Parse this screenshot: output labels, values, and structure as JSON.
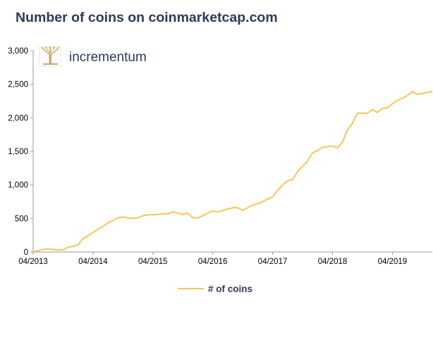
{
  "title": "Number of coins on coinmarketcap.com",
  "logo": {
    "text": "incrementum",
    "icon": "tree-icon",
    "color": "#c9a96a"
  },
  "chart_data": {
    "type": "line",
    "title": "Number of coins on coinmarketcap.com",
    "xlabel": "",
    "ylabel": "",
    "ylim": [
      0,
      3000
    ],
    "yticks": [
      "0",
      "500",
      "1,000",
      "1,500",
      "2,000",
      "2,500",
      "3,000"
    ],
    "ytick_values": [
      0,
      500,
      1000,
      1500,
      2000,
      2500,
      3000
    ],
    "xticks": [
      "04/2013",
      "04/2014",
      "04/2015",
      "04/2016",
      "04/2017",
      "04/2018",
      "04/2019"
    ],
    "grid": false,
    "legend": "bottom-center",
    "series": [
      {
        "name": "# of coins",
        "color": "#f7c55b",
        "x": [
          "2013-04",
          "2013-05",
          "2013-06",
          "2013-07",
          "2013-08",
          "2013-09",
          "2013-10",
          "2013-11",
          "2013-12",
          "2014-01",
          "2014-02",
          "2014-03",
          "2014-04",
          "2014-05",
          "2014-06",
          "2014-07",
          "2014-08",
          "2014-09",
          "2014-10",
          "2014-11",
          "2014-12",
          "2015-01",
          "2015-02",
          "2015-03",
          "2015-04",
          "2015-05",
          "2015-06",
          "2015-07",
          "2015-08",
          "2015-09",
          "2015-10",
          "2015-11",
          "2015-12",
          "2016-01",
          "2016-02",
          "2016-03",
          "2016-04",
          "2016-05",
          "2016-06",
          "2016-07",
          "2016-08",
          "2016-09",
          "2016-10",
          "2016-11",
          "2016-12",
          "2017-01",
          "2017-02",
          "2017-03",
          "2017-04",
          "2017-05",
          "2017-06",
          "2017-07",
          "2017-08",
          "2017-09",
          "2017-10",
          "2017-11",
          "2017-12",
          "2018-01",
          "2018-02",
          "2018-03",
          "2018-04",
          "2018-05",
          "2018-06",
          "2018-07",
          "2018-08",
          "2018-09",
          "2018-10",
          "2018-11",
          "2018-12",
          "2019-01",
          "2019-02",
          "2019-03",
          "2019-04",
          "2019-05",
          "2019-06",
          "2019-07",
          "2019-08",
          "2019-09",
          "2019-10",
          "2019-11",
          "2019-12"
        ],
        "values": [
          5,
          20,
          40,
          45,
          40,
          30,
          35,
          70,
          85,
          110,
          200,
          240,
          290,
          340,
          380,
          440,
          470,
          510,
          520,
          510,
          500,
          510,
          540,
          555,
          555,
          560,
          570,
          570,
          600,
          580,
          560,
          580,
          510,
          510,
          540,
          580,
          610,
          595,
          620,
          640,
          660,
          660,
          620,
          660,
          700,
          720,
          750,
          790,
          820,
          920,
          1000,
          1060,
          1080,
          1200,
          1280,
          1350,
          1480,
          1510,
          1560,
          1570,
          1580,
          1550,
          1640,
          1820,
          1920,
          2070,
          2070,
          2070,
          2120,
          2080,
          2140,
          2150,
          2210,
          2260,
          2290,
          2330,
          2390,
          2350,
          2360,
          2380,
          2390
        ]
      }
    ]
  }
}
